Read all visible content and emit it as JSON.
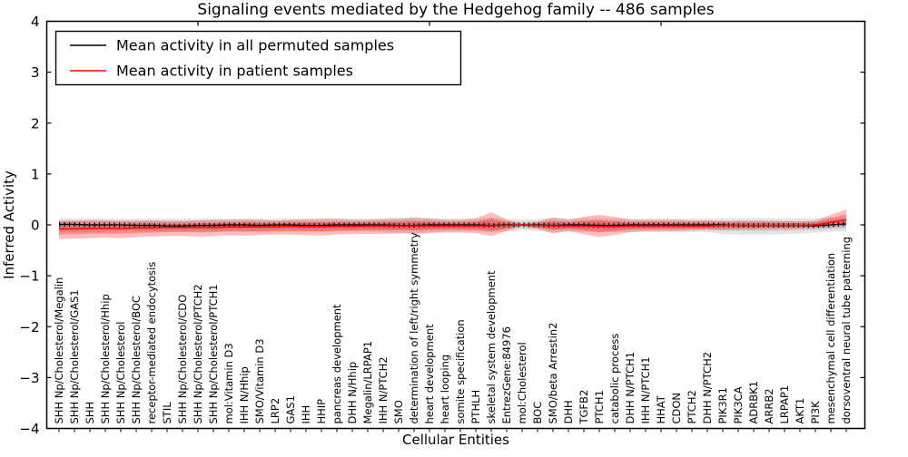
{
  "title": "Signaling events mediated by the Hedgehog family -- 486 samples",
  "axes": {
    "ylabel": "Inferred Activity",
    "xlabel": "Cellular Entities",
    "yticks": [
      "4",
      "3",
      "2",
      "1",
      "0",
      "−1",
      "−2",
      "−3",
      "−4"
    ],
    "ylim": [
      -4,
      4
    ]
  },
  "legend": {
    "items": [
      {
        "label": "Mean activity in all permuted samples",
        "color": "#000000"
      },
      {
        "label": "Mean activity in patient samples",
        "color": "#ff0000"
      }
    ]
  },
  "colors": {
    "permuted_line": "#000000",
    "patient_line": "#ff0000",
    "patient_band": "rgba(255,0,0,0.26)",
    "permuted_band": "rgba(0,0,0,0.11)"
  },
  "chart_data": {
    "type": "line",
    "title": "Signaling events mediated by the Hedgehog family -- 486 samples",
    "xlabel": "Cellular Entities",
    "ylabel": "Inferred Activity",
    "ylim": [
      -4,
      4
    ],
    "legend_position": "upper-left",
    "grid": false,
    "categories": [
      "SHH Np/Cholesterol/Megalin",
      "SHH Np/Cholesterol/GAS1",
      "SHH",
      "SHH Np/Cholesterol/Hhip",
      "SHH Np/Cholesterol",
      "SHH Np/Cholesterol/BOC",
      "receptor-mediated endocytosis",
      "STIL",
      "SHH Np/Cholesterol/CDO",
      "SHH Np/Cholesterol/PTCH2",
      "SHH Np/Cholesterol/PTCH1",
      "mol:Vitamin D3",
      "IHH N/Hhip",
      "SMO/Vitamin D3",
      "LRP2",
      "GAS1",
      "IHH",
      "HHIP",
      "pancreas development",
      "DHH N/Hhip",
      "Megalin/LRPAP1",
      "IHH N/PTCH2",
      "SMO",
      "determination of left/right symmetry",
      "heart development",
      "heart looping",
      "somite specification",
      "PTHLH",
      "skeletal system development",
      "EntrezGene:84976",
      "mol:Cholesterol",
      "BOC",
      "SMO/beta Arrestin2",
      "DHH",
      "TGFB2",
      "PTCH1",
      "catabolic process",
      "DHH N/PTCH1",
      "IHH N/PTCH1",
      "HHAT",
      "CDON",
      "PTCH2",
      "DHH N/PTCH2",
      "PIK3R1",
      "PIK3CA",
      "ADRBK1",
      "ARRB2",
      "LRPAP1",
      "AKT1",
      "PI3K",
      "mesenchymal cell differentiation",
      "dorsoventral neural tube patterning"
    ],
    "series": [
      {
        "name": "Mean activity in all permuted samples",
        "color": "#000000",
        "values": [
          0.01,
          0.01,
          0,
          0,
          0,
          -0.01,
          -0.01,
          -0.02,
          -0.02,
          -0.01,
          -0.01,
          0,
          0,
          -0.01,
          0,
          0,
          -0.01,
          -0.01,
          0,
          0,
          0,
          0,
          -0.01,
          -0.01,
          0,
          0,
          0,
          0,
          -0.01,
          0,
          0,
          0,
          -0.01,
          0,
          0,
          -0.01,
          -0.01,
          0,
          0,
          0,
          0,
          0,
          0,
          0,
          -0.01,
          -0.01,
          -0.01,
          -0.01,
          -0.01,
          -0.02,
          0,
          0.02
        ],
        "band_upper": [
          0.13,
          0.13,
          0.13,
          0.12,
          0.12,
          0.12,
          0.12,
          0.12,
          0.12,
          0.12,
          0.12,
          0.12,
          0.12,
          0.12,
          0.12,
          0.12,
          0.12,
          0.12,
          0.12,
          0.12,
          0.12,
          0.14,
          0.14,
          0.15,
          0.14,
          0.12,
          0.12,
          0.12,
          0.14,
          0.12,
          0.1,
          0.11,
          0.13,
          0.12,
          0.13,
          0.13,
          0.13,
          0.12,
          0.12,
          0.12,
          0.12,
          0.12,
          0.12,
          0.12,
          0.13,
          0.13,
          0.13,
          0.13,
          0.13,
          0.13,
          0.15,
          0.14
        ],
        "band_lower": [
          -0.14,
          -0.14,
          -0.14,
          -0.13,
          -0.13,
          -0.13,
          -0.13,
          -0.13,
          -0.13,
          -0.13,
          -0.13,
          -0.13,
          -0.13,
          -0.13,
          -0.13,
          -0.13,
          -0.13,
          -0.13,
          -0.13,
          -0.13,
          -0.13,
          -0.15,
          -0.15,
          -0.16,
          -0.15,
          -0.13,
          -0.13,
          -0.13,
          -0.15,
          -0.13,
          -0.1,
          -0.12,
          -0.14,
          -0.13,
          -0.14,
          -0.14,
          -0.14,
          -0.14,
          -0.14,
          -0.14,
          -0.14,
          -0.14,
          -0.14,
          -0.18,
          -0.19,
          -0.19,
          -0.19,
          -0.18,
          -0.17,
          -0.15,
          -0.13,
          -0.13
        ]
      },
      {
        "name": "Mean activity in patient samples",
        "color": "#ff0000",
        "values": [
          -0.08,
          -0.08,
          -0.07,
          -0.07,
          -0.07,
          -0.06,
          -0.06,
          -0.05,
          -0.05,
          -0.05,
          -0.05,
          -0.04,
          -0.04,
          -0.04,
          -0.04,
          -0.03,
          -0.03,
          -0.03,
          -0.03,
          -0.03,
          -0.02,
          -0.02,
          -0.02,
          -0.02,
          -0.02,
          -0.02,
          -0.02,
          -0.02,
          -0.02,
          -0.01,
          0.0,
          -0.01,
          -0.02,
          -0.02,
          -0.02,
          -0.03,
          -0.03,
          -0.02,
          -0.02,
          -0.02,
          -0.02,
          -0.02,
          -0.02,
          -0.01,
          -0.01,
          -0.01,
          -0.01,
          -0.01,
          -0.01,
          0.0,
          0.05,
          0.1
        ],
        "band_upper": [
          0.08,
          0.08,
          0.09,
          0.09,
          0.08,
          0.08,
          0.09,
          0.08,
          0.08,
          0.09,
          0.1,
          0.1,
          0.11,
          0.1,
          0.09,
          0.1,
          0.11,
          0.12,
          0.12,
          0.1,
          0.1,
          0.11,
          0.12,
          0.14,
          0.12,
          0.1,
          0.1,
          0.13,
          0.25,
          0.1,
          0.02,
          0.06,
          0.15,
          0.1,
          0.16,
          0.2,
          0.16,
          0.1,
          0.1,
          0.1,
          0.1,
          0.09,
          0.09,
          0.08,
          0.08,
          0.08,
          0.08,
          0.07,
          0.07,
          0.08,
          0.2,
          0.3
        ],
        "band_lower": [
          -0.28,
          -0.27,
          -0.26,
          -0.25,
          -0.26,
          -0.24,
          -0.23,
          -0.22,
          -0.22,
          -0.23,
          -0.22,
          -0.2,
          -0.21,
          -0.2,
          -0.19,
          -0.19,
          -0.2,
          -0.21,
          -0.19,
          -0.18,
          -0.18,
          -0.18,
          -0.17,
          -0.18,
          -0.16,
          -0.15,
          -0.15,
          -0.16,
          -0.22,
          -0.12,
          -0.02,
          -0.08,
          -0.17,
          -0.12,
          -0.18,
          -0.24,
          -0.2,
          -0.14,
          -0.12,
          -0.12,
          -0.12,
          -0.11,
          -0.1,
          -0.1,
          -0.09,
          -0.09,
          -0.08,
          -0.08,
          -0.07,
          -0.06,
          -0.05,
          -0.02
        ]
      }
    ]
  }
}
